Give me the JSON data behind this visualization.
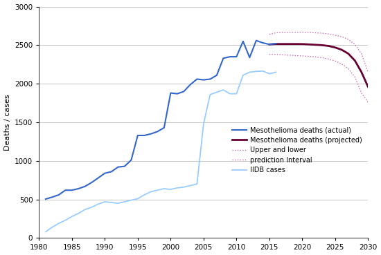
{
  "title": "",
  "ylabel": "Deaths / cases",
  "xlabel": "",
  "xlim": [
    1980,
    2030
  ],
  "ylim": [
    0,
    3000
  ],
  "yticks": [
    0,
    500,
    1000,
    1500,
    2000,
    2500,
    3000
  ],
  "xticks": [
    1980,
    1985,
    1990,
    1995,
    2000,
    2005,
    2010,
    2015,
    2020,
    2025,
    2030
  ],
  "actual_deaths": {
    "x": [
      1981,
      1982,
      1983,
      1984,
      1985,
      1986,
      1987,
      1988,
      1989,
      1990,
      1991,
      1992,
      1993,
      1994,
      1995,
      1996,
      1997,
      1998,
      1999,
      2000,
      2001,
      2002,
      2003,
      2004,
      2005,
      2006,
      2007,
      2008,
      2009,
      2010,
      2011,
      2012,
      2013,
      2014,
      2015,
      2016
    ],
    "y": [
      505,
      530,
      560,
      620,
      620,
      640,
      670,
      720,
      780,
      840,
      860,
      920,
      930,
      1010,
      1330,
      1330,
      1350,
      1380,
      1430,
      1880,
      1870,
      1900,
      1990,
      2060,
      2050,
      2060,
      2110,
      2330,
      2350,
      2350,
      2550,
      2340,
      2560,
      2530,
      2510,
      2520
    ],
    "color": "#3366cc",
    "linewidth": 1.5
  },
  "projected_deaths": {
    "x": [
      2015,
      2016,
      2017,
      2018,
      2019,
      2020,
      2021,
      2022,
      2023,
      2024,
      2025,
      2026,
      2027,
      2028,
      2029,
      2030
    ],
    "y": [
      2510,
      2515,
      2515,
      2515,
      2515,
      2515,
      2510,
      2505,
      2500,
      2490,
      2470,
      2440,
      2390,
      2300,
      2150,
      1960
    ],
    "color": "#660033",
    "linewidth": 2.0
  },
  "upper_interval": {
    "x": [
      2015,
      2016,
      2017,
      2018,
      2019,
      2020,
      2021,
      2022,
      2023,
      2024,
      2025,
      2026,
      2027,
      2028,
      2029,
      2030
    ],
    "y": [
      2640,
      2660,
      2665,
      2668,
      2668,
      2668,
      2665,
      2660,
      2655,
      2645,
      2630,
      2610,
      2575,
      2510,
      2390,
      2150
    ],
    "color": "#cc66aa",
    "linewidth": 1.0
  },
  "lower_interval": {
    "x": [
      2015,
      2016,
      2017,
      2018,
      2019,
      2020,
      2021,
      2022,
      2023,
      2024,
      2025,
      2026,
      2027,
      2028,
      2029,
      2030
    ],
    "y": [
      2380,
      2380,
      2375,
      2370,
      2365,
      2360,
      2355,
      2348,
      2338,
      2320,
      2295,
      2255,
      2195,
      2085,
      1880,
      1760
    ],
    "color": "#cc66aa",
    "linewidth": 1.0
  },
  "iidb_cases": {
    "x": [
      1981,
      1982,
      1983,
      1984,
      1985,
      1986,
      1987,
      1988,
      1989,
      1990,
      1991,
      1992,
      1993,
      1994,
      1995,
      1996,
      1997,
      1998,
      1999,
      2000,
      2001,
      2002,
      2003,
      2004,
      2005,
      2006,
      2007,
      2008,
      2009,
      2010,
      2011,
      2012,
      2013,
      2014,
      2015,
      2016
    ],
    "y": [
      80,
      140,
      190,
      230,
      280,
      320,
      370,
      400,
      440,
      470,
      460,
      450,
      470,
      490,
      510,
      560,
      600,
      620,
      640,
      630,
      650,
      660,
      680,
      700,
      1480,
      1860,
      1890,
      1920,
      1870,
      1870,
      2110,
      2150,
      2160,
      2165,
      2130,
      2150
    ],
    "color": "#99ccff",
    "linewidth": 1.3
  },
  "legend_items": [
    {
      "label": "Mesothelioma deaths (actual)",
      "color": "#3366cc",
      "linestyle": "solid",
      "linewidth": 1.5
    },
    {
      "label": "Mesothelioma deaths (projected)",
      "color": "#660033",
      "linestyle": "solid",
      "linewidth": 2.0
    },
    {
      "label": "Upper and lower",
      "color": "#cc66aa",
      "linestyle": "dotted",
      "linewidth": 1.0
    },
    {
      "label": "prediction Interval",
      "color": "#cc66aa",
      "linestyle": "dotted",
      "linewidth": 1.0
    },
    {
      "label": "IIDB cases",
      "color": "#99ccff",
      "linestyle": "solid",
      "linewidth": 1.3
    }
  ],
  "background_color": "#ffffff",
  "grid_color": "#bbbbbb"
}
